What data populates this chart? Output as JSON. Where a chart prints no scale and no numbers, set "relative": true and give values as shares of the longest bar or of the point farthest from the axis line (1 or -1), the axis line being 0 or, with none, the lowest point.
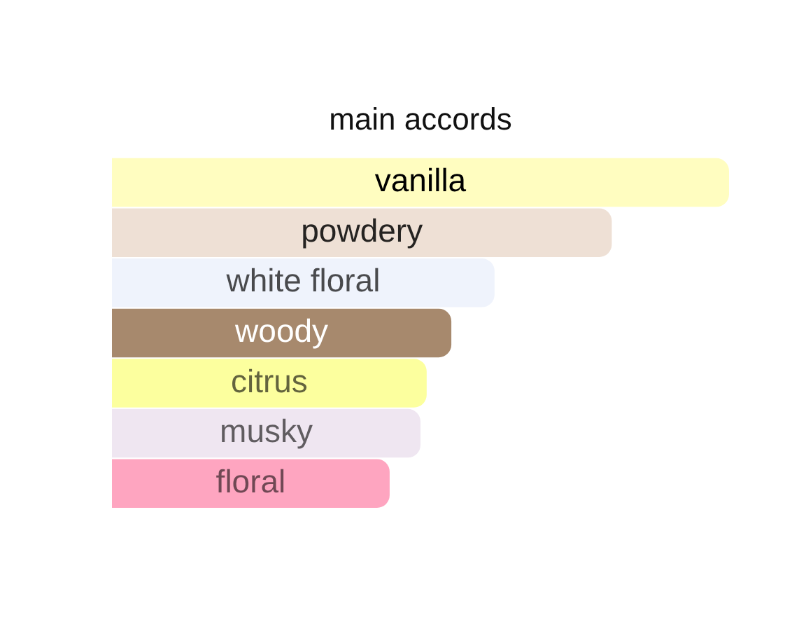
{
  "chart_data": {
    "type": "bar",
    "orientation": "horizontal",
    "relative": true,
    "title": "main accords",
    "categories": [
      "vanilla",
      "powdery",
      "white floral",
      "woody",
      "citrus",
      "musky",
      "floral"
    ],
    "values": [
      1,
      0.81,
      0.62,
      0.55,
      0.51,
      0.5,
      0.45
    ],
    "colors": [
      "#fffdc0",
      "#eee0d5",
      "#eff3fc",
      "#a7896d",
      "#fcff9e",
      "#efe6f1",
      "#fea5c0"
    ],
    "legend": false
  }
}
